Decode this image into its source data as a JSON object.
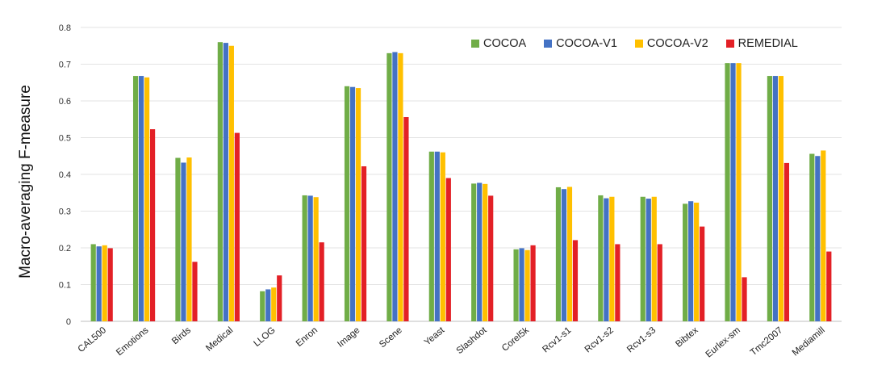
{
  "chart_data": {
    "type": "bar",
    "xlabel": "",
    "ylabel": "Macro-averaging F-measure",
    "ylim": [
      0,
      0.8
    ],
    "yticks": [
      "0",
      "0.1",
      "0.2",
      "0.3",
      "0.4",
      "0.5",
      "0.6",
      "0.7",
      "0.8"
    ],
    "grid": true,
    "legend_position": "top-right",
    "categories": [
      "CAL500",
      "Emotions",
      "Birds",
      "Medical",
      "LLOG",
      "Enron",
      "Image",
      "Scene",
      "Yeast",
      "Slashdot",
      "Corel5k",
      "Rcv1-s1",
      "Rcv1-s2",
      "Rcv1-s3",
      "Bibtex",
      "Eurlex-sm",
      "Tmc2007",
      "Mediamill"
    ],
    "series": [
      {
        "name": "COCOA",
        "color": "#70ad47",
        "values": [
          0.21,
          0.668,
          0.445,
          0.76,
          0.082,
          0.343,
          0.64,
          0.73,
          0.462,
          0.375,
          0.196,
          0.365,
          0.343,
          0.339,
          0.32,
          0.703,
          0.668,
          0.456
        ]
      },
      {
        "name": "COCOA-V1",
        "color": "#4472c4",
        "values": [
          0.204,
          0.668,
          0.432,
          0.758,
          0.087,
          0.342,
          0.638,
          0.733,
          0.462,
          0.377,
          0.199,
          0.36,
          0.335,
          0.334,
          0.327,
          0.703,
          0.668,
          0.45
        ]
      },
      {
        "name": "COCOA-V2",
        "color": "#ffc000",
        "values": [
          0.207,
          0.664,
          0.446,
          0.75,
          0.092,
          0.338,
          0.635,
          0.73,
          0.46,
          0.374,
          0.194,
          0.366,
          0.339,
          0.339,
          0.323,
          0.703,
          0.668,
          0.465
        ]
      },
      {
        "name": "REMEDIAL",
        "color": "#e32026",
        "values": [
          0.199,
          0.523,
          0.162,
          0.513,
          0.125,
          0.215,
          0.422,
          0.556,
          0.39,
          0.342,
          0.207,
          0.221,
          0.21,
          0.21,
          0.258,
          0.12,
          0.431,
          0.19
        ]
      }
    ]
  }
}
